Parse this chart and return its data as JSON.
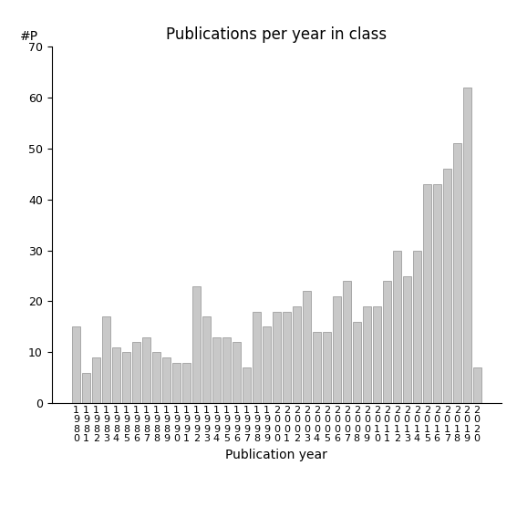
{
  "years": [
    "1980",
    "1981",
    "1982",
    "1983",
    "1984",
    "1985",
    "1986",
    "1987",
    "1988",
    "1989",
    "1990",
    "1991",
    "1992",
    "1993",
    "1994",
    "1995",
    "1996",
    "1997",
    "1998",
    "1999",
    "2000",
    "2001",
    "2002",
    "2003",
    "2004",
    "2005",
    "2006",
    "2007",
    "2008",
    "2009",
    "2010",
    "2011",
    "2012",
    "2013",
    "2014",
    "2015",
    "2016",
    "2017",
    "2018",
    "2019",
    "2020"
  ],
  "values": [
    15,
    6,
    9,
    17,
    11,
    10,
    12,
    13,
    10,
    9,
    8,
    8,
    23,
    17,
    13,
    13,
    12,
    7,
    18,
    15,
    18,
    18,
    19,
    22,
    14,
    14,
    21,
    24,
    16,
    19,
    19,
    24,
    30,
    25,
    30,
    43,
    43,
    46,
    51,
    62,
    7
  ],
  "title": "Publications per year in class",
  "xlabel": "Publication year",
  "ylabel_text": "#P",
  "ylim": [
    0,
    70
  ],
  "yticks": [
    0,
    10,
    20,
    30,
    40,
    50,
    60,
    70
  ],
  "bar_color": "#c8c8c8",
  "bar_edgecolor": "#909090",
  "background_color": "#ffffff",
  "title_fontsize": 12,
  "label_fontsize": 10,
  "tick_fontsize": 9
}
